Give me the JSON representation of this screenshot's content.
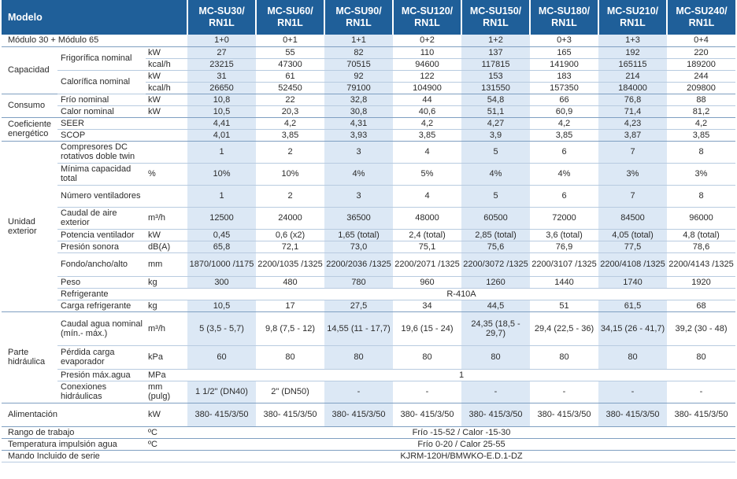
{
  "header": {
    "label": "Modelo",
    "models": [
      "MC-SU30/ RN1L",
      "MC-SU60/ RN1L",
      "MC-SU90/ RN1L",
      "MC-SU120/ RN1L",
      "MC-SU150/ RN1L",
      "MC-SU180/ RN1L",
      "MC-SU210/ RN1L",
      "MC-SU240/ RN1L"
    ]
  },
  "modulo": {
    "label": "Módulo 30 + Módulo 65",
    "values": [
      "1+0",
      "0+1",
      "1+1",
      "0+2",
      "1+2",
      "0+3",
      "1+3",
      "0+4"
    ]
  },
  "capacidad": {
    "label": "Capacidad",
    "frig_label": "Frigorífica nominal",
    "frig_kw": {
      "unit": "kW",
      "values": [
        "27",
        "55",
        "82",
        "110",
        "137",
        "165",
        "192",
        "220"
      ]
    },
    "frig_kcal": {
      "unit": "kcal/h",
      "values": [
        "23215",
        "47300",
        "70515",
        "94600",
        "117815",
        "141900",
        "165115",
        "189200"
      ]
    },
    "cal_label": "Calorífica nominal",
    "cal_kw": {
      "unit": "kW",
      "values": [
        "31",
        "61",
        "92",
        "122",
        "153",
        "183",
        "214",
        "244"
      ]
    },
    "cal_kcal": {
      "unit": "kcal/h",
      "values": [
        "26650",
        "52450",
        "79100",
        "104900",
        "131550",
        "157350",
        "184000",
        "209800"
      ]
    }
  },
  "consumo": {
    "label": "Consumo",
    "frio": {
      "label": "Frío nominal",
      "unit": "kW",
      "values": [
        "10,8",
        "22",
        "32,8",
        "44",
        "54,8",
        "66",
        "76,8",
        "88"
      ]
    },
    "calor": {
      "label": "Calor nominal",
      "unit": "kW",
      "values": [
        "10,5",
        "20,3",
        "30,8",
        "40,6",
        "51,1",
        "60,9",
        "71,4",
        "81,2"
      ]
    }
  },
  "coeficiente": {
    "label": "Coeficiente energético",
    "seer": {
      "label": "SEER",
      "values": [
        "4,41",
        "4,2",
        "4,31",
        "4,2",
        "4,27",
        "4,2",
        "4,23",
        "4,2"
      ]
    },
    "scop": {
      "label": "SCOP",
      "values": [
        "4,01",
        "3,85",
        "3,93",
        "3,85",
        "3,9",
        "3,85",
        "3,87",
        "3,85"
      ]
    }
  },
  "unidad": {
    "label": "Unidad exterior",
    "compresores": {
      "label": "Compresores DC rotativos doble twin",
      "unit": "",
      "values": [
        "1",
        "2",
        "3",
        "4",
        "5",
        "6",
        "7",
        "8"
      ]
    },
    "minima": {
      "label": "Mínima capacidad total",
      "unit": "%",
      "values": [
        "10%",
        "10%",
        "4%",
        "5%",
        "4%",
        "4%",
        "3%",
        "3%"
      ]
    },
    "ventiladores": {
      "label": "Número ventiladores",
      "unit": "",
      "values": [
        "1",
        "2",
        "3",
        "4",
        "5",
        "6",
        "7",
        "8"
      ]
    },
    "caudal": {
      "label": "Caudal de aire exterior",
      "unit": "m³/h",
      "values": [
        "12500",
        "24000",
        "36500",
        "48000",
        "60500",
        "72000",
        "84500",
        "96000"
      ]
    },
    "potencia": {
      "label": "Potencia ventilador",
      "unit": "kW",
      "values": [
        "0,45",
        "0,6 (x2)",
        "1,65 (total)",
        "2,4 (total)",
        "2,85 (total)",
        "3,6 (total)",
        "4,05 (total)",
        "4,8 (total)"
      ]
    },
    "presion": {
      "label": "Presión sonora",
      "unit": "dB(A)",
      "values": [
        "65,8",
        "72,1",
        "73,0",
        "75,1",
        "75,6",
        "76,9",
        "77,5",
        "78,6"
      ]
    },
    "fondo": {
      "label": "Fondo/ancho/alto",
      "unit": "mm",
      "values": [
        "1870/1000 /1175",
        "2200/1035 /1325",
        "2200/2036 /1325",
        "2200/2071 /1325",
        "2200/3072 /1325",
        "2200/3107 /1325",
        "2200/4108 /1325",
        "2200/4143 /1325"
      ]
    },
    "peso": {
      "label": "Peso",
      "unit": "kg",
      "values": [
        "300",
        "480",
        "780",
        "960",
        "1260",
        "1440",
        "1740",
        "1920"
      ]
    },
    "refrigerante": {
      "label": "Refrigerante",
      "value": "R-410A"
    },
    "carga": {
      "label": "Carga refrigerante",
      "unit": "kg",
      "values": [
        "10,5",
        "17",
        "27,5",
        "34",
        "44,5",
        "51",
        "61,5",
        "68"
      ]
    }
  },
  "hidraulica": {
    "label": "Parte hidráulica",
    "caudal_agua": {
      "label": "Caudal agua nominal (mín.- máx.)",
      "unit": "m³/h",
      "values": [
        "5 (3,5 - 5,7)",
        "9,8 (7,5 - 12)",
        "14,55 (11 - 17,7)",
        "19,6 (15 - 24)",
        "24,35 (18,5 - 29,7)",
        "29,4 (22,5 - 36)",
        "34,15 (26 - 41,7)",
        "39,2 (30 - 48)"
      ]
    },
    "perdida": {
      "label": "Pérdida carga evaporador",
      "unit": "kPa",
      "values": [
        "60",
        "80",
        "80",
        "80",
        "80",
        "80",
        "80",
        "80"
      ]
    },
    "presion_max": {
      "label": "Presión máx.agua",
      "unit": "MPa",
      "value": "1"
    },
    "conexiones": {
      "label": "Conexiones hidráulicas",
      "unit": "mm (pulg)",
      "values": [
        "1 1/2\" (DN40)",
        "2\" (DN50)",
        "-",
        "-",
        "-",
        "-",
        "-",
        "-"
      ]
    }
  },
  "alimentacion": {
    "label": "Alimentación",
    "unit": "kW",
    "values": [
      "380- 415/3/50",
      "380- 415/3/50",
      "380- 415/3/50",
      "380- 415/3/50",
      "380- 415/3/50",
      "380- 415/3/50",
      "380- 415/3/50",
      "380- 415/3/50"
    ]
  },
  "rango": {
    "label": "Rango de trabajo",
    "unit": "ºC",
    "value": "Frío -15-52 / Calor -15-30"
  },
  "temperatura": {
    "label": "Temperatura impulsión agua",
    "unit": "ºC",
    "value": "Frío 0-20 / Calor 25-55"
  },
  "mando": {
    "label": "Mando Incluido de serie",
    "value": "KJRM-120H/BMWKO-E.D.1-DZ"
  },
  "colors": {
    "header": "#1f5f99",
    "blue_cell": "#dce8f5",
    "rule": "#b8cbe0"
  }
}
